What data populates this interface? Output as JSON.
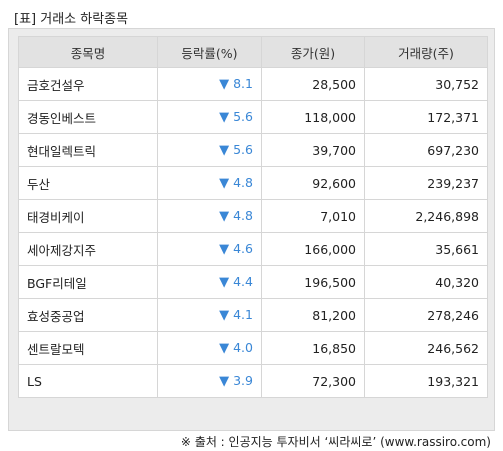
{
  "title": "[표] 거래소 하락종목",
  "columns": [
    "종목명",
    "등락률(%)",
    "종가(원)",
    "거래량(주)"
  ],
  "arrow_symbol": "▼",
  "rows": [
    {
      "name": "금호건설우",
      "rate": "8.1",
      "price": "28,500",
      "volume": "30,752"
    },
    {
      "name": "경동인베스트",
      "rate": "5.6",
      "price": "118,000",
      "volume": "172,371"
    },
    {
      "name": "현대일렉트릭",
      "rate": "5.6",
      "price": "39,700",
      "volume": "697,230"
    },
    {
      "name": "두산",
      "rate": "4.8",
      "price": "92,600",
      "volume": "239,237"
    },
    {
      "name": "태경비케이",
      "rate": "4.8",
      "price": "7,010",
      "volume": "2,246,898"
    },
    {
      "name": "세아제강지주",
      "rate": "4.6",
      "price": "166,000",
      "volume": "35,661"
    },
    {
      "name": "BGF리테일",
      "rate": "4.4",
      "price": "196,500",
      "volume": "40,320"
    },
    {
      "name": "효성중공업",
      "rate": "4.1",
      "price": "81,200",
      "volume": "278,246"
    },
    {
      "name": "센트랄모텍",
      "rate": "4.0",
      "price": "16,850",
      "volume": "246,562"
    },
    {
      "name": "LS",
      "rate": "3.9",
      "price": "72,300",
      "volume": "193,321"
    }
  ],
  "footer": "※ 출처 : 인공지능 투자비서 ‘씨라씨로’ (www.rassiro.com)",
  "colors": {
    "down": "#3a87d6",
    "header_bg": "#e2e2e2",
    "panel_bg": "#ececec",
    "border": "#d6d6d6"
  }
}
